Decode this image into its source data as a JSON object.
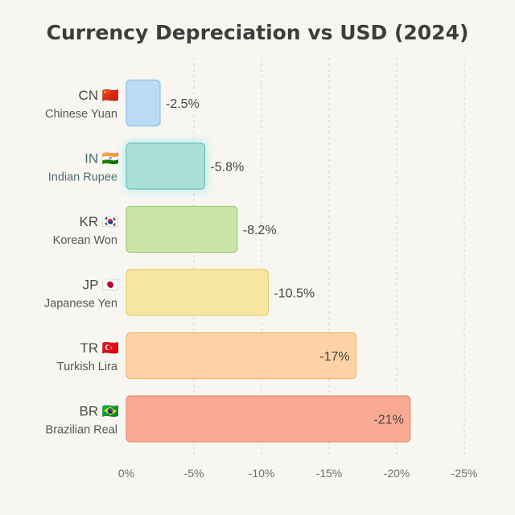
{
  "chart_data": {
    "type": "bar",
    "orientation": "horizontal",
    "title": "Currency Depreciation vs USD (2024)",
    "xlabel": "",
    "ylabel": "",
    "xlim": [
      0,
      -25
    ],
    "ticks": [
      {
        "value": 0,
        "label": "0%"
      },
      {
        "value": -5,
        "label": "-5%"
      },
      {
        "value": -10,
        "label": "-10%"
      },
      {
        "value": -15,
        "label": "-15%"
      },
      {
        "value": -20,
        "label": "-20%"
      },
      {
        "value": -25,
        "label": "-25%"
      }
    ],
    "grid": true,
    "categories": [
      {
        "code": "CN",
        "flag": "🇨🇳",
        "name": "Chinese Yuan",
        "value": -2.5,
        "label": "-2.5%",
        "color": "#bcdcf5",
        "stroke": "#8fc1ea",
        "highlight": false
      },
      {
        "code": "IN",
        "flag": "🇮🇳",
        "name": "Indian Rupee",
        "value": -5.8,
        "label": "-5.8%",
        "color": "#a8e0d8",
        "stroke": "#6cc3b7",
        "highlight": true
      },
      {
        "code": "KR",
        "flag": "🇰🇷",
        "name": "Korean Won",
        "value": -8.2,
        "label": "-8.2%",
        "color": "#c9e6a6",
        "stroke": "#9dcd74",
        "highlight": false
      },
      {
        "code": "JP",
        "flag": "🇯🇵",
        "name": "Japanese Yen",
        "value": -10.5,
        "label": "-10.5%",
        "color": "#f7e6a2",
        "stroke": "#e6cd6c",
        "highlight": false
      },
      {
        "code": "TR",
        "flag": "🇹🇷",
        "name": "Turkish Lira",
        "value": -17,
        "label": "-17%",
        "color": "#fdd3a6",
        "stroke": "#f2b374",
        "highlight": false
      },
      {
        "code": "BR",
        "flag": "🇧🇷",
        "name": "Brazilian Real",
        "value": -21,
        "label": "-21%",
        "color": "#f9aa95",
        "stroke": "#ea8b73",
        "highlight": false
      }
    ]
  }
}
